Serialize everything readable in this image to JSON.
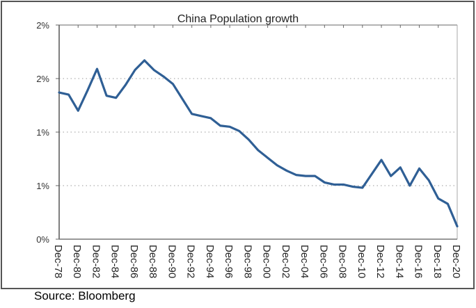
{
  "chart_data": {
    "type": "line",
    "title": "China Population growth",
    "xlabel": "",
    "ylabel": "",
    "ylim": [
      0,
      2.0
    ],
    "yticks": [
      0,
      0.5,
      1.0,
      1.5,
      2.0
    ],
    "ytick_labels": [
      "0%",
      "1%",
      "1%",
      "2%",
      "2%"
    ],
    "grid": "horizontal-dotted",
    "legend": "none",
    "x_tick_labels": [
      "Dec-78",
      "Dec-80",
      "Dec-82",
      "Dec-84",
      "Dec-86",
      "Dec-88",
      "Dec-90",
      "Dec-92",
      "Dec-94",
      "Dec-96",
      "Dec-98",
      "Dec-00",
      "Dec-02",
      "Dec-04",
      "Dec-06",
      "Dec-08",
      "Dec-10",
      "Dec-12",
      "Dec-14",
      "Dec-16",
      "Dec-18",
      "Dec-20"
    ],
    "x": [
      1978,
      1979,
      1980,
      1981,
      1982,
      1983,
      1984,
      1985,
      1986,
      1987,
      1988,
      1989,
      1990,
      1991,
      1992,
      1993,
      1994,
      1995,
      1996,
      1997,
      1998,
      1999,
      2000,
      2001,
      2002,
      2003,
      2004,
      2005,
      2006,
      2007,
      2008,
      2009,
      2010,
      2011,
      2012,
      2013,
      2014,
      2015,
      2016,
      2017,
      2018,
      2019,
      2020
    ],
    "xlim": [
      1978,
      2020
    ],
    "series": [
      {
        "name": "China population growth",
        "color": "#2f5f95",
        "values": [
          1.37,
          1.35,
          1.2,
          1.39,
          1.59,
          1.34,
          1.32,
          1.44,
          1.58,
          1.67,
          1.58,
          1.52,
          1.45,
          1.31,
          1.17,
          1.15,
          1.13,
          1.06,
          1.05,
          1.01,
          0.93,
          0.83,
          0.76,
          0.69,
          0.64,
          0.6,
          0.59,
          0.59,
          0.53,
          0.51,
          0.51,
          0.49,
          0.48,
          0.61,
          0.74,
          0.59,
          0.67,
          0.5,
          0.66,
          0.55,
          0.38,
          0.33,
          0.12
        ]
      }
    ]
  },
  "source": "Source: Bloomberg"
}
